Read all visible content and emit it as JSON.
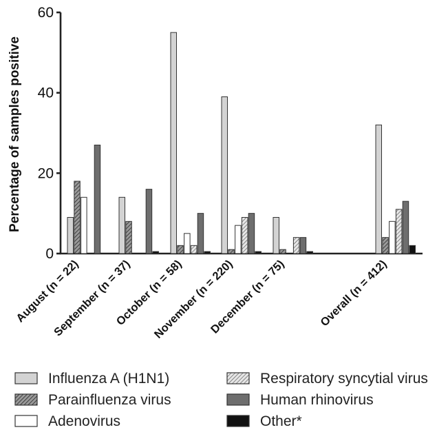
{
  "chart_data": {
    "type": "bar",
    "ylabel": "Percentage of samples positive",
    "xlabel": "",
    "ylim": [
      0,
      60
    ],
    "yticks": [
      0,
      20,
      40,
      60
    ],
    "categories": [
      "August (n = 22)",
      "September (n = 37)",
      "October (n = 58)",
      "November (n = 220)",
      "December (n = 75)",
      "Overall (n = 412)"
    ],
    "series": [
      {
        "name": "Influenza A (H1N1)",
        "values": [
          9,
          14,
          55,
          39,
          9,
          32
        ],
        "color": "#d3d3d3",
        "pattern": "solid"
      },
      {
        "name": "Parainfluenza virus",
        "values": [
          18,
          8,
          2,
          1,
          1,
          4
        ],
        "color": "#8a8a8a",
        "pattern": "hatch"
      },
      {
        "name": "Adenovirus",
        "values": [
          14,
          0,
          5,
          7,
          0,
          8
        ],
        "color": "#ffffff",
        "pattern": "solid"
      },
      {
        "name": "Respiratory syncytial virus",
        "values": [
          0,
          0,
          2,
          9,
          4,
          11
        ],
        "color": "#b8b8b8",
        "pattern": "hatch"
      },
      {
        "name": "Human rhinovirus",
        "values": [
          27,
          16,
          10,
          10,
          4,
          13
        ],
        "color": "#6e6e6e",
        "pattern": "solid"
      },
      {
        "name": "Other*",
        "values": [
          0,
          0.5,
          0.5,
          0.5,
          0.5,
          2
        ],
        "color": "#111111",
        "pattern": "solid"
      }
    ],
    "legend": {
      "placement": "bottom",
      "entries": [
        "Influenza A (H1N1)",
        "Respiratory syncytial virus",
        "Parainfluenza virus",
        "Human rhinovirus",
        "Adenovirus",
        "Other*"
      ]
    }
  }
}
